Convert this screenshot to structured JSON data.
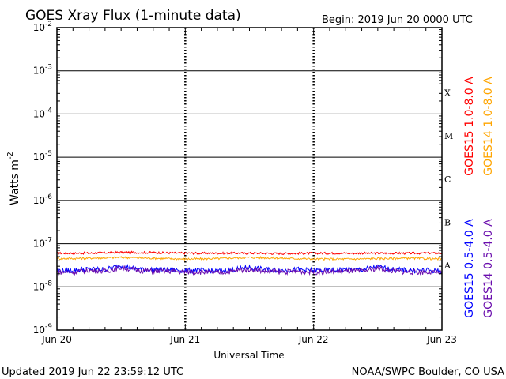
{
  "title": "GOES Xray Flux (1-minute data)",
  "begin_label": "Begin:  2019 Jun 20 0000 UTC",
  "updated_label": "Updated 2019 Jun 22 23:59:12 UTC",
  "credit_label": "NOAA/SWPC Boulder, CO USA",
  "chart_data": {
    "type": "line",
    "title": "GOES Xray Flux (1-minute data)",
    "xlabel": "Universal Time",
    "ylabel_base": "Watts m",
    "ylabel_exp": "-2",
    "x_range_hours": [
      0,
      72
    ],
    "x_ticks": [
      {
        "label": "Jun 20",
        "hour": 0
      },
      {
        "label": "Jun 21",
        "hour": 24
      },
      {
        "label": "Jun 22",
        "hour": 48
      },
      {
        "label": "Jun 23",
        "hour": 72
      }
    ],
    "y_scale": "log",
    "y_range": [
      1e-09,
      0.01
    ],
    "y_ticks": [
      {
        "base": "10",
        "exp": "-2",
        "value": 0.01
      },
      {
        "base": "10",
        "exp": "-3",
        "value": 0.001
      },
      {
        "base": "10",
        "exp": "-4",
        "value": 0.0001
      },
      {
        "base": "10",
        "exp": "-5",
        "value": 1e-05
      },
      {
        "base": "10",
        "exp": "-6",
        "value": 1e-06
      },
      {
        "base": "10",
        "exp": "-7",
        "value": 1e-07
      },
      {
        "base": "10",
        "exp": "-8",
        "value": 1e-08
      },
      {
        "base": "10",
        "exp": "-9",
        "value": 1e-09
      }
    ],
    "flare_classes": [
      {
        "label": "X",
        "value": 0.0003
      },
      {
        "label": "M",
        "value": 3e-05
      },
      {
        "label": "C",
        "value": 3e-06
      },
      {
        "label": "B",
        "value": 3e-07
      },
      {
        "label": "A",
        "value": 3e-08
      }
    ],
    "series": [
      {
        "name": "GOES15 1.0-8.0 A",
        "color": "#ff0000",
        "hours": [
          0,
          6,
          12,
          18,
          24,
          30,
          36,
          42,
          48,
          54,
          60,
          66,
          72
        ],
        "values": [
          6e-08,
          6e-08,
          6.3e-08,
          6.2e-08,
          6e-08,
          6e-08,
          6e-08,
          5.9e-08,
          6e-08,
          6e-08,
          6e-08,
          6e-08,
          6e-08
        ]
      },
      {
        "name": "GOES14 1.0-8.0 A",
        "color": "#ffa500",
        "hours": [
          0,
          6,
          12,
          18,
          24,
          30,
          36,
          42,
          48,
          54,
          60,
          66,
          72
        ],
        "values": [
          4.5e-08,
          4.6e-08,
          4.8e-08,
          4.6e-08,
          4.4e-08,
          4.5e-08,
          4.8e-08,
          4.6e-08,
          4.4e-08,
          4.4e-08,
          4.5e-08,
          4.6e-08,
          4.4e-08
        ]
      },
      {
        "name": "GOES15 0.5-4.0 A",
        "color": "#0000ff",
        "hours": [
          0,
          3,
          6,
          9,
          12,
          15,
          18,
          21,
          24,
          27,
          30,
          33,
          36,
          39,
          42,
          45,
          48,
          51,
          54,
          57,
          60,
          63,
          66,
          69,
          72
        ],
        "values": [
          2.4e-08,
          2.4e-08,
          2.6e-08,
          2.5e-08,
          3.1e-08,
          2.6e-08,
          2.5e-08,
          2.5e-08,
          2.4e-08,
          2.4e-08,
          2.3e-08,
          2.5e-08,
          2.8e-08,
          2.5e-08,
          2.4e-08,
          2.5e-08,
          2.4e-08,
          2.4e-08,
          2.5e-08,
          2.5e-08,
          2.9e-08,
          2.5e-08,
          2.4e-08,
          2.4e-08,
          2.3e-08
        ]
      },
      {
        "name": "GOES14 0.5-4.0 A",
        "color": "#6a0dad",
        "hours": [
          0,
          3,
          6,
          9,
          12,
          15,
          18,
          21,
          24,
          27,
          30,
          33,
          36,
          39,
          42,
          45,
          48,
          51,
          54,
          57,
          60,
          63,
          66,
          69,
          72
        ],
        "values": [
          2.2e-08,
          2.2e-08,
          2.4e-08,
          2.3e-08,
          2.8e-08,
          2.4e-08,
          2.3e-08,
          2.3e-08,
          2.2e-08,
          2.2e-08,
          2.1e-08,
          2.3e-08,
          2.6e-08,
          2.3e-08,
          2.2e-08,
          2.3e-08,
          2.2e-08,
          2.2e-08,
          2.3e-08,
          2.3e-08,
          2.7e-08,
          2.3e-08,
          2.2e-08,
          2.2e-08,
          2.1e-08
        ]
      }
    ],
    "legend_right": [
      "GOES15 1.0-8.0 A",
      "GOES14 1.0-8.0 A",
      "GOES15 0.5-4.0 A",
      "GOES14 0.5-4.0 A"
    ],
    "grid": true
  }
}
